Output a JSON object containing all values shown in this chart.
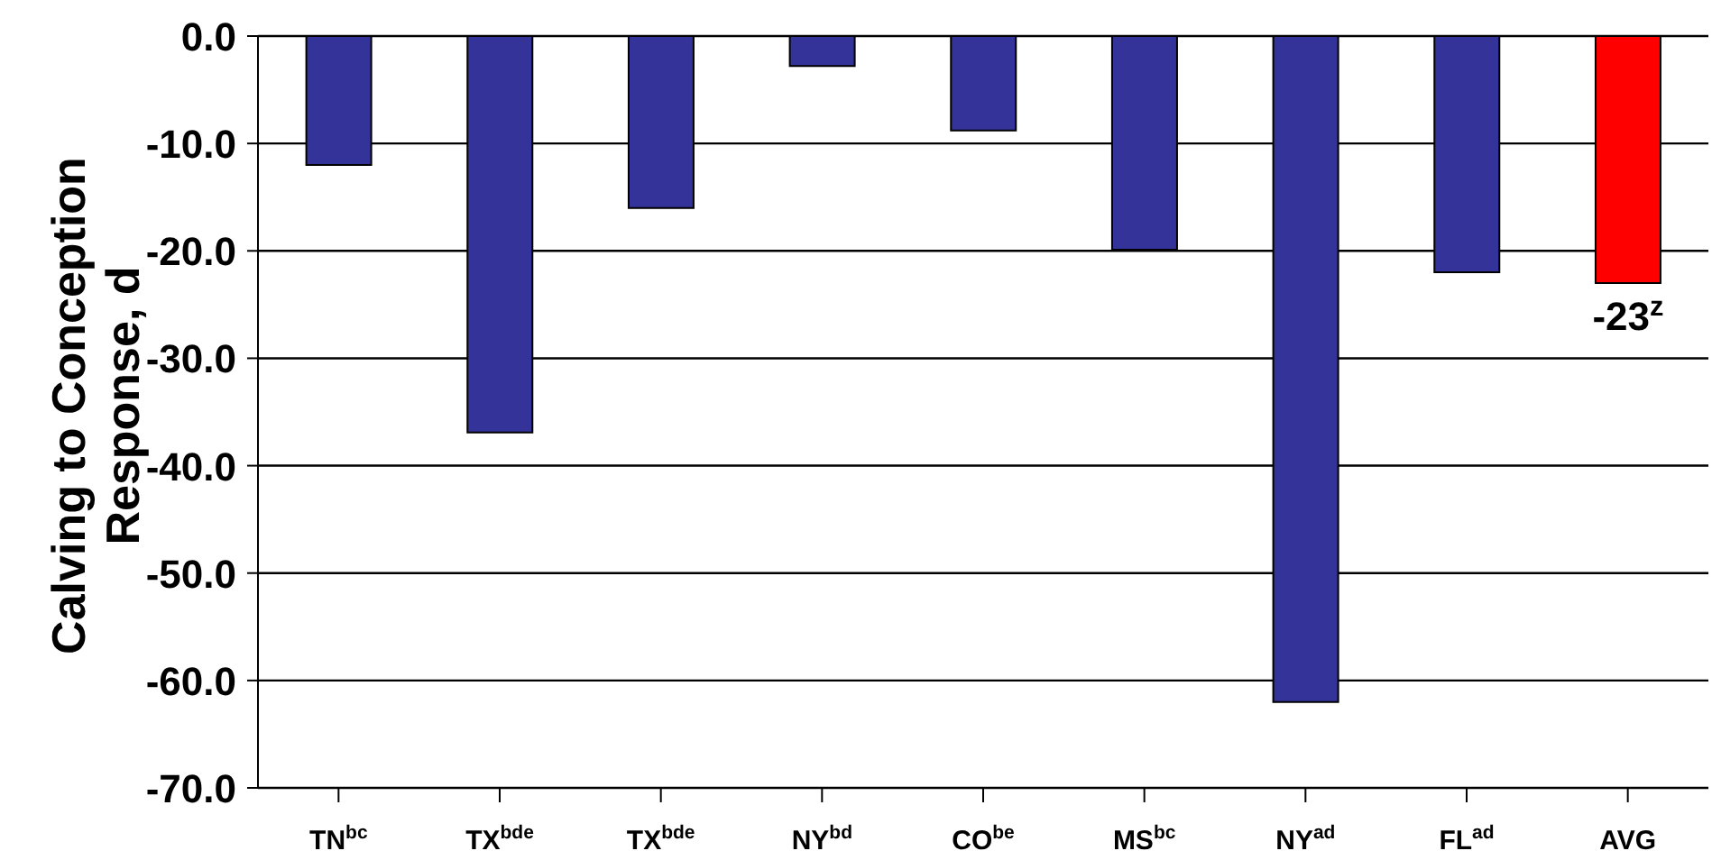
{
  "chart_data": {
    "type": "bar",
    "ylabel": "Calving to Conception Response, d",
    "categories": [
      "TN$^{bc}$",
      "TX$^{bde}$",
      "TX$^{bde}$",
      "NY$^{bd}$",
      "CO$^{be}$",
      "MS$^{bc}$",
      "NY$^{ad}$",
      "FL$^{ad}$",
      "AVG"
    ],
    "values": [
      -12.0,
      -36.9,
      -16.0,
      -2.8,
      -8.8,
      -19.9,
      -62.0,
      -22.0,
      -23
    ],
    "colors": [
      "#333399",
      "#333399",
      "#333399",
      "#333399",
      "#333399",
      "#333399",
      "#333399",
      "#333399",
      "#ff0000"
    ],
    "value_labels": [
      null,
      null,
      null,
      null,
      null,
      null,
      null,
      null,
      "-23$^{z}$"
    ],
    "ylim": [
      -70,
      0
    ],
    "yticks": [
      {
        "value": 0,
        "label": "0.0"
      },
      {
        "value": -10,
        "label": "-10.0"
      },
      {
        "value": -20,
        "label": "-20.0"
      },
      {
        "value": -30,
        "label": "-30.0"
      },
      {
        "value": -40,
        "label": "-40.0"
      },
      {
        "value": -50,
        "label": "-50.0"
      },
      {
        "value": -60,
        "label": "-60.0"
      },
      {
        "value": -70,
        "label": "-70.0"
      }
    ],
    "grid": "y"
  }
}
